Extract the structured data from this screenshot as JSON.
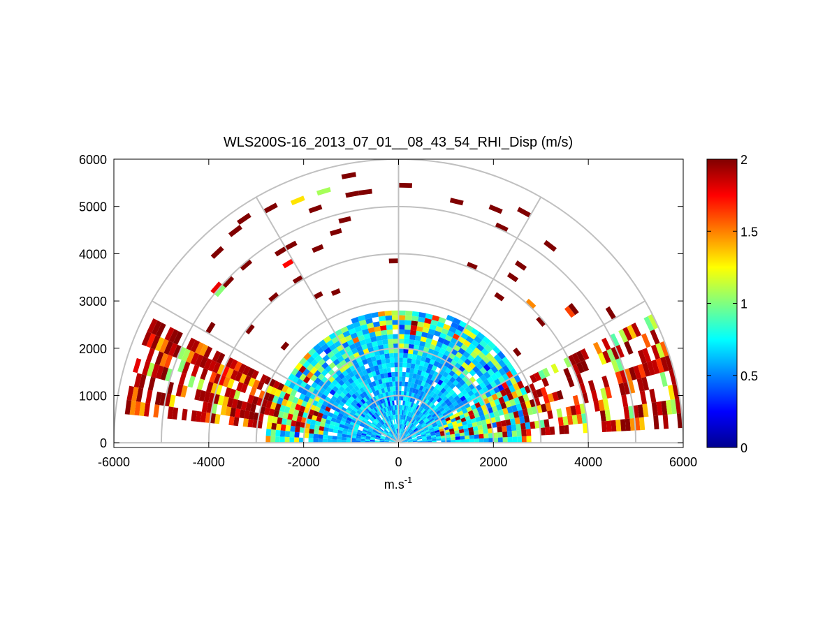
{
  "chart_data": {
    "type": "heatmap",
    "subtype": "polar-rhi-sector",
    "title": "WLS200S-16_2013_07_01__08_43_54_RHI_Disp (m/s)",
    "xlabel": "m.s",
    "xlabel_superscript": "-1",
    "ylabel": "",
    "xlim": [
      -6000,
      6000
    ],
    "ylim": [
      -100,
      6000
    ],
    "x_ticks": [
      -6000,
      -4000,
      -2000,
      0,
      2000,
      4000,
      6000
    ],
    "x_tick_labels": [
      "-6000",
      "-4000",
      "-2000",
      "0",
      "2000",
      "4000",
      "6000"
    ],
    "y_ticks": [
      0,
      1000,
      2000,
      3000,
      4000,
      5000,
      6000
    ],
    "y_tick_labels": [
      "0",
      "1000",
      "2000",
      "3000",
      "4000",
      "5000",
      "6000"
    ],
    "polar_grid": {
      "ranges": [
        1000,
        2000,
        3000,
        4000,
        5000,
        6000
      ],
      "angles_deg": [
        0,
        30,
        60,
        90,
        120,
        150,
        180
      ]
    },
    "colorbar": {
      "colormap": "jet",
      "range": [
        0,
        2
      ],
      "ticks": [
        0,
        0.5,
        1,
        1.5,
        2
      ],
      "tick_labels": [
        "0",
        "0.5",
        "1",
        "1.5",
        "2"
      ],
      "placement": "right"
    },
    "data_description": {
      "dense_region": {
        "max_range_m": 2900,
        "angle_range_deg": [
          0,
          180
        ],
        "typical_value": 0.7
      },
      "low_elevation_band_left": {
        "angles_deg": [
          155,
          180
        ],
        "range_m": [
          2000,
          5800
        ],
        "typical_value": 1.8
      },
      "low_elevation_band_right": {
        "angles_deg": [
          3,
          25
        ],
        "range_m": [
          1000,
          6000
        ],
        "typical_value": 1.8
      },
      "sparse_far_returns": {
        "range_m": [
          3000,
          6000
        ],
        "typical_value": 2.0
      }
    }
  }
}
